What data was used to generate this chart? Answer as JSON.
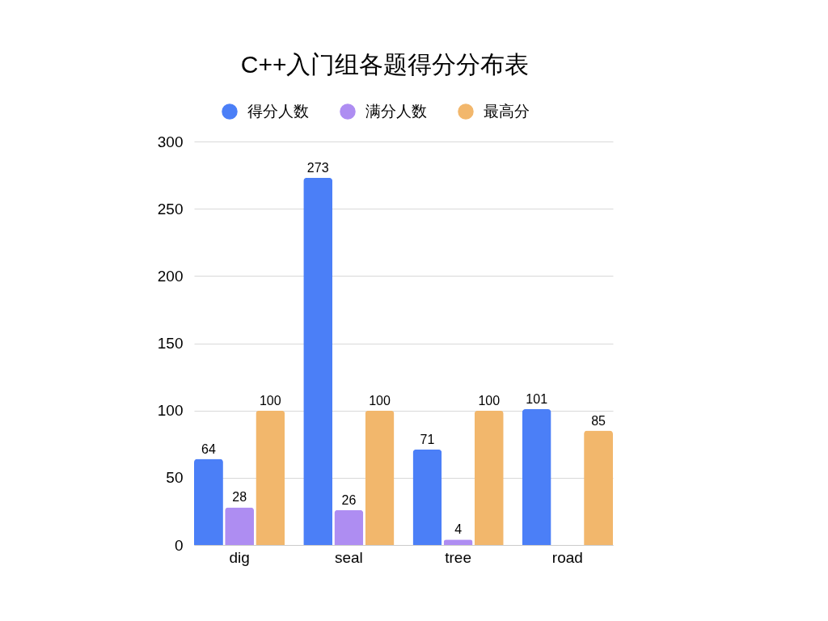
{
  "chart_data": {
    "type": "bar",
    "title": "C++入门组各题得分分布表",
    "categories": [
      "dig",
      "seal",
      "tree",
      "road"
    ],
    "series": [
      {
        "name": "得分人数",
        "color": "#4b7ff7",
        "values": [
          64,
          273,
          71,
          101
        ]
      },
      {
        "name": "满分人数",
        "color": "#ae8df2",
        "values": [
          28,
          26,
          4,
          null
        ]
      },
      {
        "name": "最高分",
        "color": "#f2b76c",
        "values": [
          100,
          100,
          100,
          85
        ]
      }
    ],
    "ylim": [
      0,
      300
    ],
    "yticks": [
      0,
      50,
      100,
      150,
      200,
      250,
      300
    ],
    "grid": "y",
    "legend": "top",
    "data_labels": true
  }
}
